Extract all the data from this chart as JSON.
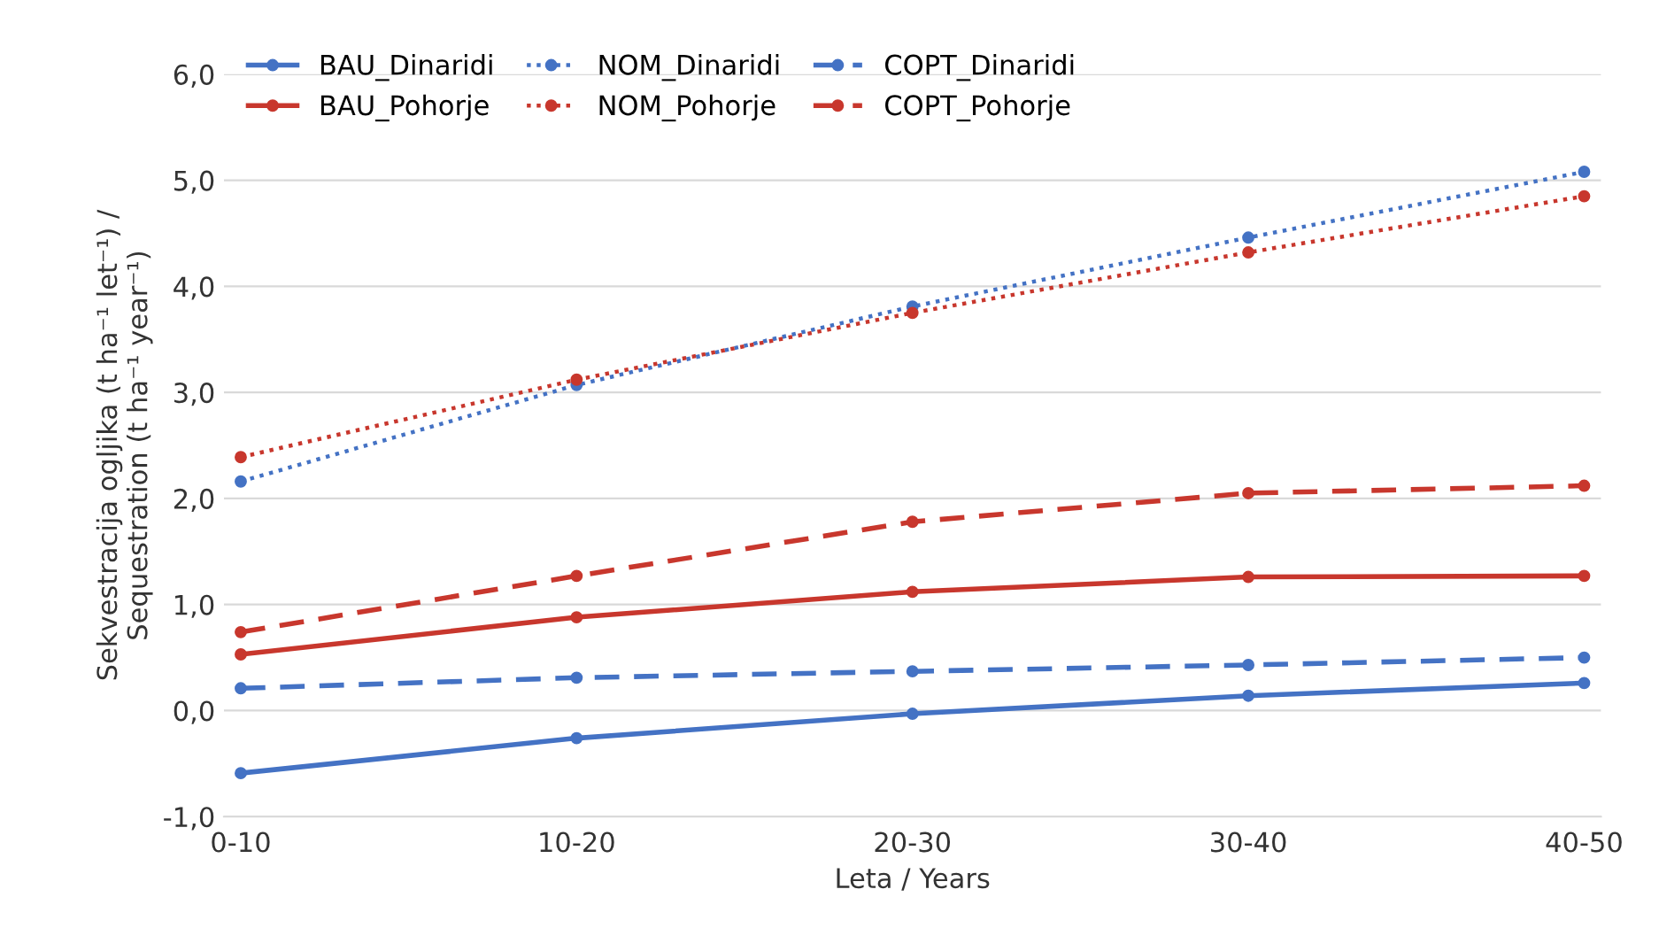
{
  "chart_data": {
    "type": "line",
    "xlabel": "Leta / Years",
    "ylabel": "Sekvestracija ogljika (t ha⁻¹ let⁻¹) /\nSequestration (t ha⁻¹ year⁻¹)",
    "categories": [
      "0-10",
      "10-20",
      "20-30",
      "30-40",
      "40-50"
    ],
    "series": [
      {
        "name": "BAU_Dinaridi",
        "color": "#4472c4",
        "line_style": "solid",
        "values": [
          -0.59,
          -0.26,
          -0.03,
          0.14,
          0.26
        ]
      },
      {
        "name": "NOM_Dinaridi",
        "color": "#4472c4",
        "line_style": "dotted",
        "values": [
          2.16,
          3.07,
          3.81,
          4.46,
          5.08
        ]
      },
      {
        "name": "COPT_Dinaridi",
        "color": "#4472c4",
        "line_style": "dashed",
        "values": [
          0.21,
          0.31,
          0.37,
          0.43,
          0.5
        ]
      },
      {
        "name": "BAU_Pohorje",
        "color": "#c8372d",
        "line_style": "solid",
        "values": [
          0.53,
          0.88,
          1.12,
          1.26,
          1.27
        ]
      },
      {
        "name": "NOM_Pohorje",
        "color": "#c8372d",
        "line_style": "dotted",
        "values": [
          2.39,
          3.12,
          3.75,
          4.32,
          4.85
        ]
      },
      {
        "name": "COPT_Pohorje",
        "color": "#c8372d",
        "line_style": "dashed",
        "values": [
          0.74,
          1.27,
          1.78,
          2.05,
          2.12
        ]
      }
    ],
    "ylim": [
      -1.0,
      6.0
    ],
    "yticks": [
      {
        "value": -1.0,
        "label": "-1,0"
      },
      {
        "value": 0.0,
        "label": "0,0"
      },
      {
        "value": 1.0,
        "label": "1,0"
      },
      {
        "value": 2.0,
        "label": "2,0"
      },
      {
        "value": 3.0,
        "label": "3,0"
      },
      {
        "value": 4.0,
        "label": "4,0"
      },
      {
        "value": 5.0,
        "label": "5,0"
      },
      {
        "value": 6.0,
        "label": "6,0"
      }
    ],
    "grid": "y",
    "legend": "top left",
    "marker": "circle"
  }
}
